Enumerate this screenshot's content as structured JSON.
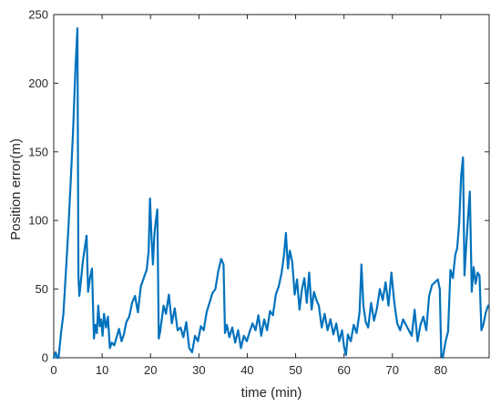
{
  "chart_data": {
    "type": "line",
    "title": "",
    "xlabel": "time (min)",
    "ylabel": "Position error(m)",
    "xlim": [
      0,
      90
    ],
    "ylim": [
      0,
      250
    ],
    "grid": false,
    "x_ticks": [
      0,
      10,
      20,
      30,
      40,
      50,
      60,
      70,
      80
    ],
    "y_ticks": [
      0,
      50,
      100,
      150,
      200,
      250
    ],
    "x_tick_labels": [
      "0",
      "10",
      "20",
      "30",
      "40",
      "50",
      "60",
      "70",
      "80"
    ],
    "y_tick_labels": [
      "0",
      "50",
      "100",
      "150",
      "200",
      "250"
    ],
    "line_color": "#0072BD",
    "series": [
      {
        "x": [
          0,
          0.4,
          0.7,
          1.0,
          1.5,
          2.0,
          2.5,
          3.0,
          3.5,
          4.0,
          4.5,
          4.9,
          5.1,
          5.3,
          5.6,
          6.0,
          6.5,
          6.8,
          7.1,
          7.5,
          7.9,
          8.3,
          8.6,
          8.9,
          9.2,
          9.5,
          9.8,
          10.1,
          10.4,
          10.8,
          11.2,
          11.6,
          12.0,
          12.5,
          13.0,
          13.5,
          14.0,
          14.5,
          15.0,
          15.6,
          16.2,
          16.8,
          17.4,
          18.0,
          18.6,
          19.2,
          19.6,
          19.9,
          20.2,
          20.5,
          20.8,
          21.1,
          21.4,
          21.7,
          22.0,
          22.3,
          22.7,
          23.2,
          23.8,
          24.4,
          25.0,
          25.6,
          26.2,
          26.8,
          27.4,
          28.0,
          28.6,
          29.2,
          29.8,
          30.4,
          31.0,
          31.6,
          32.2,
          32.8,
          33.4,
          34.0,
          34.6,
          35.1,
          35.4,
          35.8,
          36.3,
          36.9,
          37.5,
          38.1,
          38.7,
          39.3,
          39.9,
          40.5,
          41.1,
          41.7,
          42.3,
          42.9,
          43.5,
          44.1,
          44.7,
          45.3,
          45.9,
          46.5,
          47.1,
          47.6,
          48.0,
          48.4,
          48.8,
          49.3,
          49.8,
          50.3,
          50.8,
          51.3,
          51.8,
          52.3,
          52.8,
          53.3,
          53.8,
          54.3,
          54.8,
          55.4,
          56.0,
          56.6,
          57.2,
          57.8,
          58.4,
          59.0,
          59.6,
          60.0,
          60.4,
          60.8,
          61.4,
          62.0,
          62.6,
          63.2,
          63.6,
          64.0,
          64.5,
          65.0,
          65.6,
          66.2,
          66.8,
          67.4,
          68.0,
          68.6,
          69.2,
          69.8,
          70.4,
          71.0,
          71.6,
          72.2,
          72.8,
          73.4,
          74.0,
          74.6,
          75.2,
          75.8,
          76.4,
          77.0,
          77.6,
          78.2,
          78.8,
          79.4,
          79.8,
          80.1,
          80.4,
          80.7,
          81.0,
          81.5,
          82.0,
          82.5,
          83.0,
          83.4,
          83.8,
          84.2,
          84.6,
          84.9,
          85.2,
          85.6,
          86.0,
          86.4,
          86.8,
          87.2,
          87.6,
          88.0,
          88.4,
          88.8,
          89.3,
          89.8
        ],
        "y": [
          0,
          4,
          0,
          0,
          18,
          32,
          62,
          92,
          128,
          165,
          212,
          240,
          60,
          45,
          55,
          70,
          82,
          89,
          48,
          58,
          65,
          14,
          24,
          18,
          38,
          23,
          28,
          16,
          32,
          22,
          30,
          7,
          11,
          9,
          15,
          21,
          12,
          17,
          26,
          30,
          40,
          45,
          33,
          52,
          58,
          64,
          77,
          116,
          88,
          68,
          90,
          100,
          108,
          14,
          19,
          27,
          38,
          32,
          46,
          25,
          36,
          20,
          22,
          15,
          26,
          7,
          4,
          16,
          12,
          23,
          20,
          33,
          40,
          47,
          50,
          63,
          72,
          68,
          18,
          24,
          15,
          22,
          11,
          20,
          7,
          16,
          12,
          19,
          25,
          20,
          31,
          16,
          28,
          20,
          34,
          31,
          46,
          52,
          62,
          75,
          91,
          65,
          78,
          70,
          46,
          57,
          35,
          50,
          58,
          40,
          62,
          35,
          48,
          42,
          38,
          22,
          32,
          20,
          28,
          17,
          25,
          12,
          20,
          8,
          2,
          17,
          12,
          24,
          18,
          33,
          68,
          38,
          26,
          22,
          40,
          27,
          36,
          50,
          42,
          55,
          38,
          62,
          40,
          25,
          20,
          28,
          24,
          20,
          16,
          35,
          12,
          24,
          30,
          20,
          45,
          53,
          55,
          57,
          50,
          3,
          0,
          6,
          12,
          19,
          64,
          58,
          75,
          80,
          98,
          132,
          146,
          60,
          78,
          100,
          121,
          48,
          66,
          54,
          62,
          60,
          20,
          24,
          33,
          38
        ]
      }
    ]
  }
}
